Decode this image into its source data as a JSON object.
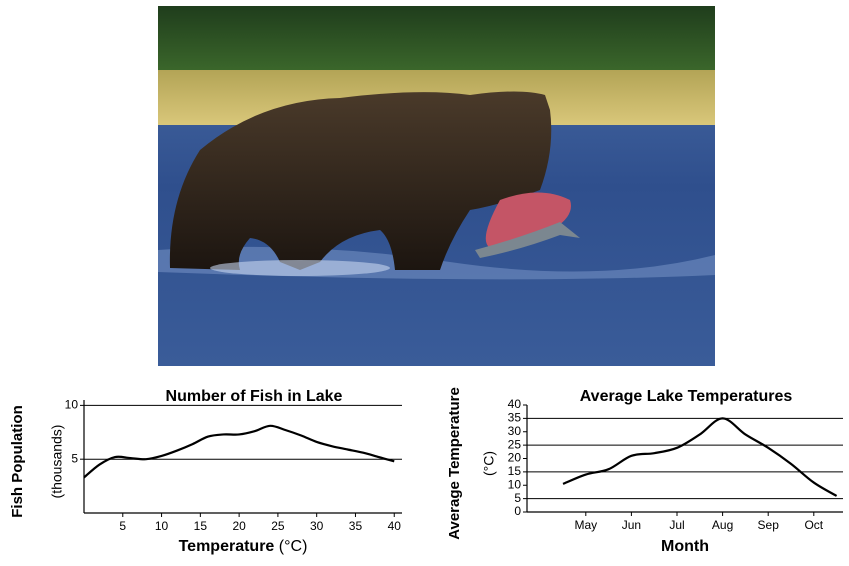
{
  "chart_data": [
    {
      "type": "line",
      "title": "Number of Fish in Lake",
      "ylabel": "Fish Population",
      "ylabel_unit": "(thousands)",
      "xlabel": "Temperature",
      "xlabel_unit": "(°C)",
      "x": [
        0,
        2,
        4,
        6,
        8,
        10,
        12,
        14,
        16,
        18,
        20,
        22,
        24,
        26,
        28,
        30,
        32,
        34,
        36,
        38,
        40
      ],
      "values": [
        3.3,
        4.5,
        5.2,
        5.1,
        5.0,
        5.3,
        5.8,
        6.4,
        7.1,
        7.3,
        7.3,
        7.6,
        8.1,
        7.7,
        7.2,
        6.6,
        6.2,
        5.9,
        5.6,
        5.2,
        4.8
      ],
      "color": "#000000",
      "xlim": [
        0,
        41
      ],
      "xticks": [
        5,
        10,
        15,
        20,
        25,
        30,
        35,
        40
      ],
      "ylim": [
        0,
        10.5
      ],
      "yticks": [
        5,
        10
      ],
      "gridlines": [
        5,
        10
      ]
    },
    {
      "type": "line",
      "title": "Average Lake Temperatures",
      "ylabel": "Average Temperature",
      "ylabel_unit": "(°C)",
      "xlabel": "Month",
      "categories": [
        null,
        "May",
        null,
        "Jun",
        null,
        "Jul",
        null,
        "Aug",
        null,
        "Sep",
        null,
        "Oct",
        null
      ],
      "values": [
        10.5,
        14,
        16,
        21,
        22,
        24,
        29,
        35,
        29,
        24,
        18,
        11,
        6
      ],
      "color": "#000000",
      "ylim": [
        0,
        40
      ],
      "yticks": [
        0,
        5,
        10,
        15,
        20,
        25,
        30,
        35,
        40
      ],
      "gridlines": [
        5,
        15,
        25,
        35
      ]
    }
  ]
}
